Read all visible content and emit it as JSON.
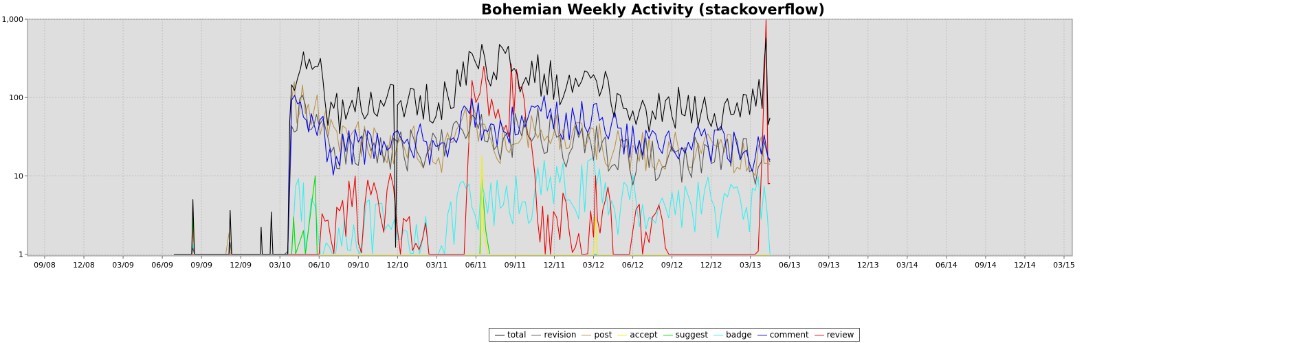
{
  "chart_data": {
    "type": "line",
    "title": "Bohemian Weekly Activity (stackoverflow)",
    "xlabel": "",
    "ylabel": "",
    "yscale": "log",
    "ylim": [
      0.95,
      1000
    ],
    "y_ticks": [
      "1",
      "10",
      "100",
      "1,000"
    ],
    "x_ticks": [
      "09/08",
      "12/08",
      "03/09",
      "06/09",
      "09/09",
      "12/09",
      "03/10",
      "06/10",
      "09/10",
      "12/10",
      "03/11",
      "06/11",
      "09/11",
      "12/11",
      "03/12",
      "06/12",
      "09/12",
      "12/12",
      "03/13",
      "06/13",
      "09/13",
      "12/13",
      "03/14",
      "06/14",
      "09/14",
      "12/14",
      "03/15"
    ],
    "grid": true,
    "legend_position": "bottom",
    "series": [
      {
        "name": "total",
        "color": "#000000",
        "anchors": [
          [
            3.3,
            1
          ],
          [
            3.75,
            1
          ],
          [
            3.78,
            6
          ],
          [
            3.82,
            1
          ],
          [
            4.7,
            1
          ],
          [
            4.73,
            5
          ],
          [
            4.77,
            1
          ],
          [
            5.5,
            1
          ],
          [
            5.52,
            3
          ],
          [
            5.55,
            1
          ],
          [
            5.75,
            1
          ],
          [
            5.78,
            3
          ],
          [
            5.82,
            1
          ],
          [
            6.2,
            1
          ],
          [
            6.25,
            40
          ],
          [
            6.3,
            200
          ],
          [
            6.6,
            220
          ],
          [
            6.9,
            160
          ],
          [
            7.1,
            230
          ],
          [
            7.15,
            60
          ],
          [
            7.3,
            80
          ],
          [
            7.6,
            60
          ],
          [
            8.0,
            80
          ],
          [
            8.4,
            75
          ],
          [
            8.9,
            90
          ],
          [
            8.95,
            1
          ],
          [
            9.0,
            80
          ],
          [
            9.5,
            75
          ],
          [
            9.9,
            90
          ],
          [
            10.2,
            100
          ],
          [
            10.6,
            180
          ],
          [
            10.9,
            300
          ],
          [
            11.15,
            370
          ],
          [
            11.3,
            220
          ],
          [
            11.6,
            250
          ],
          [
            11.9,
            270
          ],
          [
            12.2,
            200
          ],
          [
            12.5,
            200
          ],
          [
            12.9,
            180
          ],
          [
            13.3,
            130
          ],
          [
            13.7,
            150
          ],
          [
            14.0,
            120
          ],
          [
            14.3,
            130
          ],
          [
            14.6,
            100
          ],
          [
            15.0,
            55
          ],
          [
            15.5,
            60
          ],
          [
            16.0,
            70
          ],
          [
            16.5,
            75
          ],
          [
            17.0,
            70
          ],
          [
            17.5,
            60
          ],
          [
            17.9,
            60
          ],
          [
            18.3,
            120
          ],
          [
            18.35,
            350
          ],
          [
            18.4,
            440
          ],
          [
            18.45,
            70
          ],
          [
            18.5,
            55
          ]
        ],
        "noise": 0.28
      },
      {
        "name": "revision",
        "color": "#555555",
        "anchors": [
          [
            3.3,
            1
          ],
          [
            3.75,
            1
          ],
          [
            3.78,
            2
          ],
          [
            3.82,
            1
          ],
          [
            4.7,
            1
          ],
          [
            4.73,
            2
          ],
          [
            4.77,
            1
          ],
          [
            6.2,
            1
          ],
          [
            6.3,
            30
          ],
          [
            6.5,
            60
          ],
          [
            6.8,
            60
          ],
          [
            7.0,
            40
          ],
          [
            7.1,
            100
          ],
          [
            7.3,
            25
          ],
          [
            7.6,
            20
          ],
          [
            8.0,
            22
          ],
          [
            8.4,
            20
          ],
          [
            8.9,
            25
          ],
          [
            9.0,
            20
          ],
          [
            9.5,
            25
          ],
          [
            9.9,
            20
          ],
          [
            10.2,
            25
          ],
          [
            10.5,
            40
          ],
          [
            10.9,
            55
          ],
          [
            11.3,
            25
          ],
          [
            11.7,
            25
          ],
          [
            12.0,
            35
          ],
          [
            12.5,
            40
          ],
          [
            12.9,
            35
          ],
          [
            13.3,
            25
          ],
          [
            13.7,
            30
          ],
          [
            14.0,
            25
          ],
          [
            14.3,
            20
          ],
          [
            14.7,
            15
          ],
          [
            15.0,
            15
          ],
          [
            15.5,
            17
          ],
          [
            16.0,
            15
          ],
          [
            16.5,
            18
          ],
          [
            17.0,
            15
          ],
          [
            17.5,
            20
          ],
          [
            17.9,
            15
          ],
          [
            18.2,
            12
          ],
          [
            18.35,
            30
          ],
          [
            18.45,
            15
          ],
          [
            18.5,
            15
          ]
        ],
        "noise": 0.3
      },
      {
        "name": "post",
        "color": "#b8944a",
        "anchors": [
          [
            3.3,
            1
          ],
          [
            3.75,
            1
          ],
          [
            3.78,
            2
          ],
          [
            3.82,
            1
          ],
          [
            4.7,
            1
          ],
          [
            4.73,
            2
          ],
          [
            4.77,
            1
          ],
          [
            6.2,
            1
          ],
          [
            6.3,
            90
          ],
          [
            6.5,
            80
          ],
          [
            6.8,
            75
          ],
          [
            7.1,
            60
          ],
          [
            7.3,
            30
          ],
          [
            7.6,
            25
          ],
          [
            8.0,
            30
          ],
          [
            8.4,
            25
          ],
          [
            8.9,
            25
          ],
          [
            9.0,
            22
          ],
          [
            9.5,
            25
          ],
          [
            9.9,
            15
          ],
          [
            10.2,
            20
          ],
          [
            10.5,
            30
          ],
          [
            10.9,
            55
          ],
          [
            11.3,
            25
          ],
          [
            11.7,
            25
          ],
          [
            12.0,
            35
          ],
          [
            12.5,
            45
          ],
          [
            12.9,
            35
          ],
          [
            13.3,
            30
          ],
          [
            13.7,
            35
          ],
          [
            14.0,
            30
          ],
          [
            14.3,
            25
          ],
          [
            14.7,
            20
          ],
          [
            15.0,
            20
          ],
          [
            15.5,
            20
          ],
          [
            16.0,
            20
          ],
          [
            16.5,
            22
          ],
          [
            17.0,
            20
          ],
          [
            17.5,
            18
          ],
          [
            17.9,
            15
          ],
          [
            18.2,
            15
          ],
          [
            18.35,
            25
          ],
          [
            18.45,
            12
          ],
          [
            18.5,
            14
          ]
        ],
        "noise": 0.28
      },
      {
        "name": "accept",
        "color": "#f0f000",
        "anchors": [
          [
            3.3,
            1
          ],
          [
            11.12,
            1
          ],
          [
            11.15,
            18
          ],
          [
            11.2,
            2
          ],
          [
            11.3,
            1
          ],
          [
            14.0,
            1
          ],
          [
            14.05,
            3
          ],
          [
            14.1,
            1
          ],
          [
            18.5,
            1
          ]
        ],
        "noise": 0.0
      },
      {
        "name": "suggest",
        "color": "#00dd00",
        "anchors": [
          [
            3.3,
            1
          ],
          [
            3.75,
            1
          ],
          [
            3.78,
            3
          ],
          [
            3.82,
            1
          ],
          [
            6.3,
            1
          ],
          [
            6.35,
            3
          ],
          [
            6.4,
            1
          ],
          [
            6.6,
            2
          ],
          [
            6.65,
            1
          ],
          [
            6.9,
            10
          ],
          [
            6.95,
            1
          ],
          [
            11.1,
            1
          ],
          [
            11.15,
            9
          ],
          [
            11.25,
            2
          ],
          [
            11.35,
            1
          ],
          [
            18.5,
            1
          ]
        ],
        "noise": 0.0
      },
      {
        "name": "badge",
        "color": "#33f0f0",
        "anchors": [
          [
            3.3,
            1
          ],
          [
            3.75,
            1
          ],
          [
            3.78,
            3
          ],
          [
            3.82,
            1
          ],
          [
            6.3,
            1
          ],
          [
            6.4,
            3
          ],
          [
            6.55,
            5
          ],
          [
            6.6,
            7
          ],
          [
            6.65,
            1
          ],
          [
            6.8,
            3
          ],
          [
            6.9,
            4
          ],
          [
            7.1,
            1
          ],
          [
            7.5,
            2
          ],
          [
            7.8,
            2
          ],
          [
            8.2,
            2
          ],
          [
            8.6,
            2
          ],
          [
            9.0,
            1
          ],
          [
            9.4,
            2
          ],
          [
            9.8,
            2
          ],
          [
            10.2,
            1
          ],
          [
            10.6,
            5
          ],
          [
            10.9,
            3
          ],
          [
            11.3,
            4
          ],
          [
            11.7,
            4
          ],
          [
            12.1,
            5
          ],
          [
            12.5,
            6
          ],
          [
            12.9,
            7
          ],
          [
            13.3,
            6
          ],
          [
            13.7,
            7
          ],
          [
            14.0,
            7
          ],
          [
            14.3,
            6
          ],
          [
            14.7,
            4
          ],
          [
            15.0,
            5
          ],
          [
            15.5,
            4
          ],
          [
            16.0,
            4
          ],
          [
            16.5,
            5
          ],
          [
            17.0,
            4
          ],
          [
            17.5,
            4
          ],
          [
            17.9,
            4
          ],
          [
            18.2,
            5
          ],
          [
            18.35,
            4
          ],
          [
            18.5,
            1
          ]
        ],
        "noise": 0.4
      },
      {
        "name": "comment",
        "color": "#0000ee",
        "anchors": [
          [
            6.2,
            1
          ],
          [
            6.3,
            70
          ],
          [
            6.6,
            60
          ],
          [
            6.8,
            50
          ],
          [
            7.1,
            40
          ],
          [
            7.2,
            15
          ],
          [
            7.6,
            20
          ],
          [
            8.0,
            25
          ],
          [
            8.4,
            20
          ],
          [
            8.9,
            25
          ],
          [
            9.0,
            25
          ],
          [
            9.5,
            30
          ],
          [
            9.9,
            18
          ],
          [
            10.2,
            25
          ],
          [
            10.5,
            30
          ],
          [
            10.7,
            80
          ],
          [
            10.9,
            80
          ],
          [
            11.3,
            25
          ],
          [
            11.7,
            40
          ],
          [
            12.0,
            50
          ],
          [
            12.5,
            70
          ],
          [
            12.9,
            60
          ],
          [
            13.3,
            45
          ],
          [
            13.7,
            55
          ],
          [
            14.0,
            50
          ],
          [
            14.3,
            50
          ],
          [
            14.7,
            35
          ],
          [
            15.0,
            25
          ],
          [
            15.5,
            25
          ],
          [
            16.0,
            25
          ],
          [
            16.5,
            30
          ],
          [
            17.0,
            25
          ],
          [
            17.5,
            25
          ],
          [
            17.9,
            20
          ],
          [
            18.2,
            20
          ],
          [
            18.35,
            25
          ],
          [
            18.45,
            18
          ],
          [
            18.5,
            16
          ]
        ],
        "noise": 0.25
      },
      {
        "name": "review",
        "color": "#ee0000",
        "anchors": [
          [
            3.3,
            1
          ],
          [
            7.0,
            1
          ],
          [
            7.3,
            2
          ],
          [
            7.6,
            6
          ],
          [
            8.0,
            3
          ],
          [
            8.4,
            3
          ],
          [
            8.9,
            4
          ],
          [
            9.0,
            1
          ],
          [
            9.3,
            2
          ],
          [
            9.8,
            1
          ],
          [
            10.2,
            1
          ],
          [
            10.7,
            1
          ],
          [
            10.8,
            20
          ],
          [
            10.9,
            80
          ],
          [
            11.0,
            200
          ],
          [
            11.1,
            300
          ],
          [
            11.2,
            130
          ],
          [
            11.4,
            100
          ],
          [
            11.5,
            160
          ],
          [
            11.7,
            90
          ],
          [
            11.9,
            120
          ],
          [
            12.1,
            80
          ],
          [
            12.3,
            40
          ],
          [
            12.4,
            20
          ],
          [
            12.5,
            5
          ],
          [
            12.7,
            2
          ],
          [
            12.9,
            1
          ],
          [
            13.3,
            2
          ],
          [
            13.7,
            1
          ],
          [
            14.0,
            3
          ],
          [
            14.05,
            25
          ],
          [
            14.1,
            2
          ],
          [
            14.3,
            5
          ],
          [
            14.5,
            1
          ],
          [
            15.0,
            1
          ],
          [
            15.5,
            2
          ],
          [
            16.0,
            1
          ],
          [
            16.5,
            1
          ],
          [
            17.0,
            1
          ],
          [
            17.5,
            1
          ],
          [
            17.9,
            1
          ],
          [
            18.2,
            1
          ],
          [
            18.3,
            25
          ],
          [
            18.4,
            380
          ],
          [
            18.45,
            20
          ],
          [
            18.5,
            8
          ]
        ],
        "noise": 0.55
      }
    ]
  }
}
